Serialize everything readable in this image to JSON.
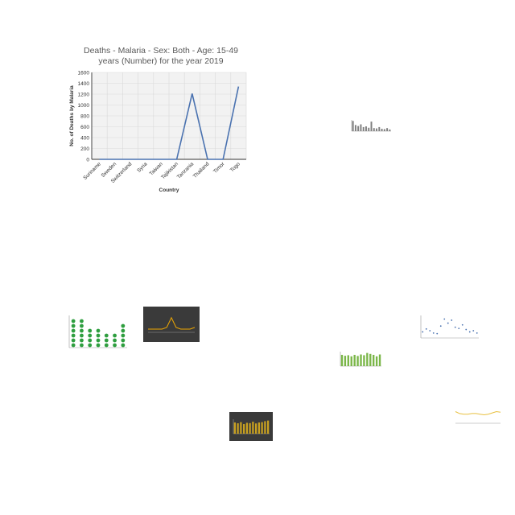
{
  "chart_data": [
    {
      "type": "line",
      "title": "Deaths - Malaria - Sex: Both - Age: 15-49 years (Number) for the year 2019",
      "title_lines": [
        "Deaths - Malaria - Sex: Both - Age: 15-49",
        "years (Number) for the year 2019"
      ],
      "xlabel": "Country",
      "ylabel": "No. of Deaths by Malaria",
      "categories": [
        "Suriname",
        "Sweden",
        "Switzerland",
        "Syria",
        "Taiwan",
        "Tajikistan",
        "Tanzania",
        "Thailand",
        "Timor",
        "Togo"
      ],
      "series": [
        {
          "values": [
            0,
            0,
            0,
            0,
            0,
            0,
            1210,
            0,
            0,
            1340
          ]
        }
      ],
      "ylim": [
        0,
        1600
      ],
      "yticks": [
        0,
        200,
        400,
        600,
        800,
        1000,
        1200,
        1400,
        1600
      ],
      "grid": true,
      "legend": "none",
      "colors": {
        "line": "#4a72b0",
        "plot_bg": "#f2f2f2",
        "grid": "#d9d9d9"
      }
    },
    {
      "type": "bar",
      "values": [
        30,
        18,
        15,
        20,
        12,
        14,
        10,
        28,
        9,
        8,
        12,
        7,
        6,
        9,
        5
      ],
      "colors": {
        "bar": "#7f7f7f"
      }
    },
    {
      "type": "scatter",
      "values": [
        6,
        6,
        4,
        4,
        3,
        3,
        5
      ],
      "colors": {
        "marker": "#2e9e3f"
      }
    },
    {
      "type": "line",
      "values": [
        2,
        2,
        2,
        2,
        3,
        9,
        3,
        2,
        2,
        2,
        3
      ],
      "colors": {
        "bg": "#3a3a3a",
        "line": "#f0a800"
      }
    },
    {
      "type": "scatter",
      "values": [
        40,
        45,
        42,
        38,
        37,
        50,
        62,
        55,
        60,
        48,
        46,
        52,
        44,
        40,
        42,
        38
      ],
      "colors": {
        "marker": "#4a72b0"
      }
    },
    {
      "type": "bar",
      "values": [
        60,
        55,
        58,
        52,
        60,
        54,
        62,
        58,
        70,
        65,
        60,
        52,
        62
      ],
      "colors": {
        "bar": "#7ab648"
      }
    },
    {
      "type": "bar",
      "values": [
        70,
        65,
        72,
        60,
        68,
        66,
        75,
        64,
        70,
        72,
        78,
        82
      ],
      "colors": {
        "bg": "#3a3a3a",
        "bar": "#c8a020"
      }
    },
    {
      "type": "line",
      "values": [
        18,
        15,
        14,
        14,
        15,
        15,
        14,
        13,
        14,
        16,
        18,
        17
      ],
      "colors": {
        "line": "#e8c040"
      }
    }
  ]
}
